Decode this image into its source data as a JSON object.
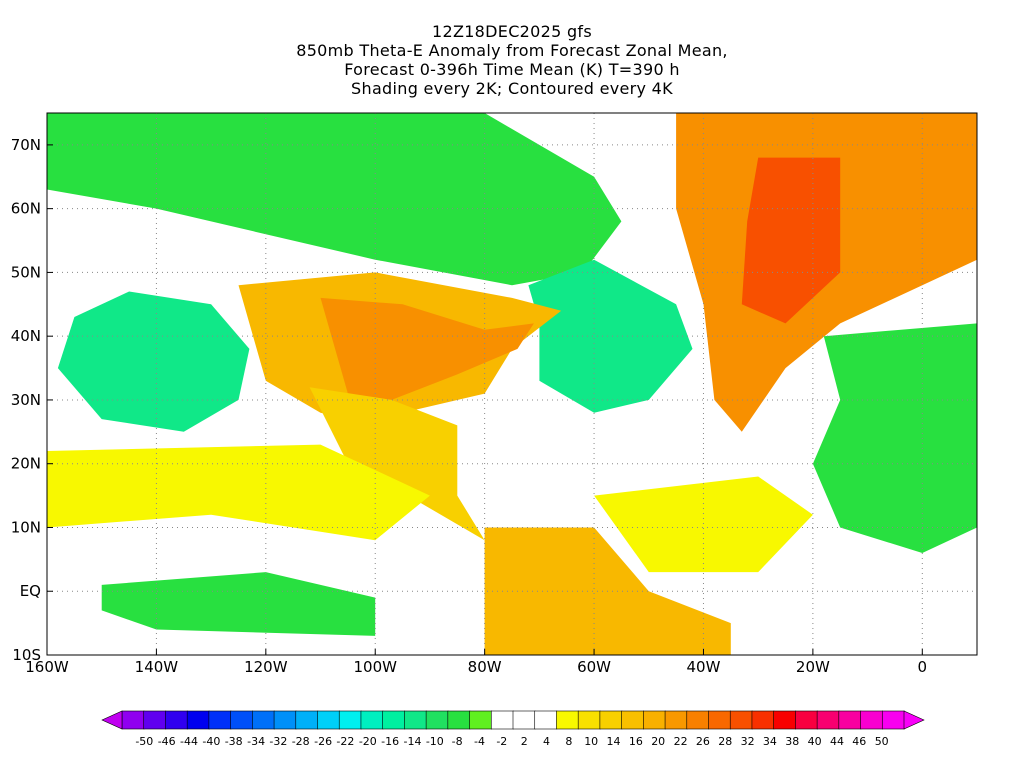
{
  "title": {
    "line1": "12Z18DEC2025 gfs",
    "line2": "850mb Theta-E Anomaly from Forecast Zonal Mean,",
    "line3": "Forecast 0-396h Time Mean (K) T=390 h",
    "line4": "Shading every 2K; Contoured every 4K"
  },
  "map": {
    "lon_range": [
      -160,
      10
    ],
    "lat_range": [
      -10,
      75
    ],
    "x_ticks": [
      {
        "value": -160,
        "label": "160W"
      },
      {
        "value": -140,
        "label": "140W"
      },
      {
        "value": -120,
        "label": "120W"
      },
      {
        "value": -100,
        "label": "100W"
      },
      {
        "value": -80,
        "label": "80W"
      },
      {
        "value": -60,
        "label": "60W"
      },
      {
        "value": -40,
        "label": "40W"
      },
      {
        "value": -20,
        "label": "20W"
      },
      {
        "value": 0,
        "label": "0"
      }
    ],
    "y_ticks": [
      {
        "value": 70,
        "label": "70N"
      },
      {
        "value": 60,
        "label": "60N"
      },
      {
        "value": 50,
        "label": "50N"
      },
      {
        "value": 40,
        "label": "40N"
      },
      {
        "value": 30,
        "label": "30N"
      },
      {
        "value": 20,
        "label": "20N"
      },
      {
        "value": 10,
        "label": "10N"
      },
      {
        "value": 0,
        "label": "EQ"
      },
      {
        "value": -10,
        "label": "10S"
      }
    ],
    "grid": true,
    "regions": [
      {
        "name": "arctic-canada-anomaly",
        "level": -10,
        "color": "#28e040",
        "points": [
          [
            -160,
            75
          ],
          [
            -80,
            75
          ],
          [
            -60,
            65
          ],
          [
            -55,
            58
          ],
          [
            -62,
            50
          ],
          [
            -75,
            48
          ],
          [
            -100,
            52
          ],
          [
            -120,
            56
          ],
          [
            -140,
            60
          ],
          [
            -160,
            63
          ]
        ]
      },
      {
        "name": "northeast-pacific-anomaly",
        "level": -14,
        "color": "#10e888",
        "points": [
          [
            -155,
            43
          ],
          [
            -145,
            47
          ],
          [
            -130,
            45
          ],
          [
            -123,
            38
          ],
          [
            -125,
            30
          ],
          [
            -135,
            25
          ],
          [
            -150,
            27
          ],
          [
            -158,
            35
          ]
        ]
      },
      {
        "name": "west-atlantic-anomaly",
        "level": -14,
        "color": "#10e888",
        "points": [
          [
            -72,
            48
          ],
          [
            -60,
            52
          ],
          [
            -45,
            45
          ],
          [
            -42,
            38
          ],
          [
            -50,
            30
          ],
          [
            -60,
            28
          ],
          [
            -70,
            33
          ],
          [
            -70,
            42
          ]
        ]
      },
      {
        "name": "northeast-atlantic-anomaly",
        "level": 16,
        "color": "#f89000",
        "points": [
          [
            -45,
            75
          ],
          [
            10,
            75
          ],
          [
            10,
            52
          ],
          [
            0,
            48
          ],
          [
            -15,
            42
          ],
          [
            -25,
            35
          ],
          [
            -33,
            25
          ],
          [
            -38,
            30
          ],
          [
            -40,
            45
          ],
          [
            -45,
            60
          ]
        ]
      },
      {
        "name": "iceland-low-anomaly",
        "level": 22,
        "color": "#f85000",
        "points": [
          [
            -30,
            68
          ],
          [
            -15,
            68
          ],
          [
            -15,
            50
          ],
          [
            -25,
            42
          ],
          [
            -33,
            45
          ],
          [
            -32,
            58
          ]
        ]
      },
      {
        "name": "united-states-anomaly",
        "level": 14,
        "color": "#f8b800",
        "points": [
          [
            -125,
            48
          ],
          [
            -100,
            50
          ],
          [
            -75,
            46
          ],
          [
            -66,
            44
          ],
          [
            -75,
            38
          ],
          [
            -80,
            31
          ],
          [
            -95,
            28
          ],
          [
            -100,
            26
          ],
          [
            -110,
            28
          ],
          [
            -120,
            33
          ]
        ]
      },
      {
        "name": "central-us-anomaly",
        "level": 16,
        "color": "#f89000",
        "points": [
          [
            -110,
            46
          ],
          [
            -95,
            45
          ],
          [
            -80,
            41
          ],
          [
            -71,
            42
          ],
          [
            -74,
            38
          ],
          [
            -85,
            34
          ],
          [
            -97,
            30
          ],
          [
            -105,
            31
          ]
        ]
      },
      {
        "name": "mexico-central-america-anomaly",
        "level": 10,
        "color": "#f8d000",
        "points": [
          [
            -112,
            32
          ],
          [
            -97,
            30
          ],
          [
            -85,
            26
          ],
          [
            -85,
            15
          ],
          [
            -80,
            8
          ],
          [
            -92,
            14
          ],
          [
            -105,
            20
          ]
        ]
      },
      {
        "name": "africa-sahara-anomaly",
        "level": -10,
        "color": "#28e040",
        "points": [
          [
            -18,
            40
          ],
          [
            10,
            42
          ],
          [
            10,
            10
          ],
          [
            0,
            6
          ],
          [
            -15,
            10
          ],
          [
            -20,
            20
          ],
          [
            -15,
            30
          ]
        ]
      },
      {
        "name": "south-america-anomaly",
        "level": 14,
        "color": "#f8b800",
        "points": [
          [
            -80,
            10
          ],
          [
            -60,
            10
          ],
          [
            -50,
            0
          ],
          [
            -35,
            -5
          ],
          [
            -35,
            -10
          ],
          [
            -80,
            -10
          ],
          [
            -80,
            -2
          ]
        ]
      },
      {
        "name": "tropical-atlantic-anomaly",
        "level": 4,
        "color": "#f8f800",
        "points": [
          [
            -60,
            15
          ],
          [
            -30,
            18
          ],
          [
            -20,
            12
          ],
          [
            -30,
            3
          ],
          [
            -50,
            3
          ]
        ]
      },
      {
        "name": "tropical-pacific-anomaly",
        "level": 4,
        "color": "#f8f800",
        "points": [
          [
            -160,
            22
          ],
          [
            -110,
            23
          ],
          [
            -90,
            15
          ],
          [
            -100,
            8
          ],
          [
            -130,
            12
          ],
          [
            -160,
            10
          ]
        ]
      },
      {
        "name": "equatorial-pacific-anomaly",
        "level": -10,
        "color": "#28e040",
        "points": [
          [
            -150,
            1
          ],
          [
            -120,
            3
          ],
          [
            -100,
            -1
          ],
          [
            -100,
            -7
          ],
          [
            -140,
            -6
          ],
          [
            -150,
            -3
          ]
        ]
      }
    ]
  },
  "colorbar": {
    "labels": [
      "-50",
      "-46",
      "-44",
      "-40",
      "-38",
      "-34",
      "-32",
      "-28",
      "-26",
      "-22",
      "-20",
      "-16",
      "-14",
      "-10",
      "-8",
      "-4",
      "-2",
      "2",
      "4",
      "8",
      "10",
      "14",
      "16",
      "20",
      "22",
      "26",
      "28",
      "32",
      "34",
      "38",
      "40",
      "44",
      "46",
      "50"
    ],
    "colors": [
      "#9000f0",
      "#6000f0",
      "#3000f0",
      "#0000f0",
      "#0030f8",
      "#0050f8",
      "#0070f8",
      "#0090f8",
      "#00b0f8",
      "#00d0f8",
      "#00f0f0",
      "#00f0c0",
      "#00f0a0",
      "#10e888",
      "#20e060",
      "#28e040",
      "#60f020",
      "#ffffff",
      "#ffffff",
      "#ffffff",
      "#f8f800",
      "#f8e000",
      "#f8d000",
      "#f8c000",
      "#f8b000",
      "#f89800",
      "#f88000",
      "#f86800",
      "#f85000",
      "#f83000",
      "#f80000",
      "#f80040",
      "#f80070",
      "#f800a0",
      "#f800d0",
      "#f800f0"
    ]
  }
}
